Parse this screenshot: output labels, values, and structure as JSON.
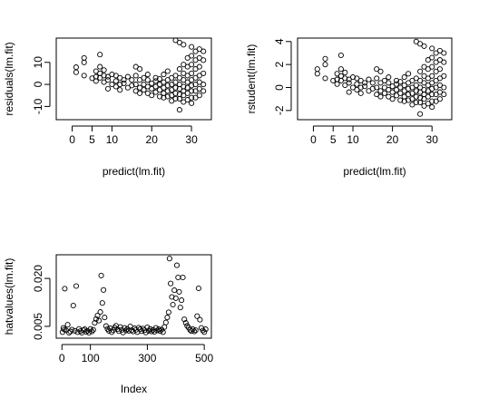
{
  "chart_data": [
    {
      "type": "scatter",
      "title": "",
      "xlabel": "predict(lm.fit)",
      "ylabel": "residuals(lm.fit)",
      "xlim": [
        -4,
        35
      ],
      "ylim": [
        -16,
        21
      ],
      "xticks": [
        0,
        5,
        10,
        20,
        30
      ],
      "yticks": [
        -10,
        0,
        10
      ],
      "grid": false,
      "legend": "none",
      "marker": "open-circle",
      "points": [
        [
          1,
          7.8
        ],
        [
          1,
          5.5
        ],
        [
          3,
          12
        ],
        [
          3,
          10
        ],
        [
          3,
          4
        ],
        [
          5,
          2.8
        ],
        [
          6,
          3.5
        ],
        [
          6,
          6
        ],
        [
          6,
          1.5
        ],
        [
          7,
          3
        ],
        [
          7,
          8
        ],
        [
          7,
          5
        ],
        [
          7,
          13.5
        ],
        [
          8,
          4
        ],
        [
          8,
          6.5
        ],
        [
          8,
          1
        ],
        [
          9,
          2
        ],
        [
          9,
          3.5
        ],
        [
          9,
          -2
        ],
        [
          10,
          4.5
        ],
        [
          10,
          0
        ],
        [
          11,
          1.5
        ],
        [
          11,
          -1
        ],
        [
          11,
          4
        ],
        [
          12,
          0
        ],
        [
          12,
          3
        ],
        [
          12,
          -2.5
        ],
        [
          13,
          2
        ],
        [
          13,
          0.5
        ],
        [
          14,
          -1.5
        ],
        [
          14,
          3.5
        ],
        [
          15,
          2
        ],
        [
          15,
          -0.5
        ],
        [
          16,
          8
        ],
        [
          16,
          4
        ],
        [
          16,
          0
        ],
        [
          16,
          -3
        ],
        [
          17,
          7
        ],
        [
          17,
          2
        ],
        [
          17,
          -1.5
        ],
        [
          17,
          -4
        ],
        [
          18,
          3
        ],
        [
          18,
          0
        ],
        [
          18,
          -2.5
        ],
        [
          19,
          2
        ],
        [
          19,
          -1
        ],
        [
          19,
          -4
        ],
        [
          19,
          4.5
        ],
        [
          20,
          0.5
        ],
        [
          20,
          -2
        ],
        [
          20,
          -5
        ],
        [
          21,
          3
        ],
        [
          21,
          -1
        ],
        [
          21,
          -3.5
        ],
        [
          21,
          1.5
        ],
        [
          22,
          0
        ],
        [
          22,
          -2.5
        ],
        [
          22,
          -5.5
        ],
        [
          22,
          2.5
        ],
        [
          23,
          4.5
        ],
        [
          23,
          1
        ],
        [
          23,
          -1.5
        ],
        [
          23,
          -4
        ],
        [
          23,
          -6
        ],
        [
          24,
          6
        ],
        [
          24,
          2
        ],
        [
          24,
          -0.5
        ],
        [
          24,
          -3
        ],
        [
          24,
          -5.5
        ],
        [
          25,
          3
        ],
        [
          25,
          0
        ],
        [
          25,
          -2.5
        ],
        [
          25,
          -5
        ],
        [
          25,
          -7.5
        ],
        [
          26,
          4
        ],
        [
          26,
          1
        ],
        [
          26,
          -1.5
        ],
        [
          26,
          -4
        ],
        [
          26,
          -6.5
        ],
        [
          26,
          20
        ],
        [
          27,
          7
        ],
        [
          27,
          3
        ],
        [
          27,
          0
        ],
        [
          27,
          -2
        ],
        [
          27,
          -4.5
        ],
        [
          27,
          -6.5
        ],
        [
          27,
          19
        ],
        [
          27,
          -11.5
        ],
        [
          28,
          9
        ],
        [
          28,
          5
        ],
        [
          28,
          2
        ],
        [
          28,
          -1
        ],
        [
          28,
          -3
        ],
        [
          28,
          -5
        ],
        [
          28,
          -8
        ],
        [
          28,
          18
        ],
        [
          29,
          12
        ],
        [
          29,
          8
        ],
        [
          29,
          4
        ],
        [
          29,
          1
        ],
        [
          29,
          -1.5
        ],
        [
          29,
          -4
        ],
        [
          29,
          -7
        ],
        [
          30,
          13
        ],
        [
          30,
          9
        ],
        [
          30,
          5
        ],
        [
          30,
          2
        ],
        [
          30,
          -0.5
        ],
        [
          30,
          -3
        ],
        [
          30,
          -6
        ],
        [
          30,
          -8.5
        ],
        [
          30,
          17
        ],
        [
          31,
          15
        ],
        [
          31,
          11
        ],
        [
          31,
          7
        ],
        [
          31,
          3
        ],
        [
          31,
          0
        ],
        [
          31,
          -3
        ],
        [
          31,
          -6
        ],
        [
          32,
          16
        ],
        [
          32,
          12
        ],
        [
          32,
          8
        ],
        [
          32,
          4
        ],
        [
          32,
          1
        ],
        [
          32,
          -2
        ],
        [
          32,
          -5
        ],
        [
          33,
          15
        ],
        [
          33,
          11
        ],
        [
          33,
          5
        ],
        [
          33,
          0
        ],
        [
          33,
          -3
        ]
      ]
    },
    {
      "type": "scatter",
      "title": "",
      "xlabel": "predict(lm.fit)",
      "ylabel": "rstudent(lm.fit)",
      "xlim": [
        -4,
        35
      ],
      "ylim": [
        -2.8,
        4.3
      ],
      "xticks": [
        0,
        5,
        10,
        20,
        30
      ],
      "yticks": [
        -2,
        0,
        2,
        4
      ],
      "grid": false,
      "legend": "none",
      "marker": "open-circle",
      "points": [
        [
          1,
          1.6
        ],
        [
          1,
          1.2
        ],
        [
          3,
          2.5
        ],
        [
          3,
          2.0
        ],
        [
          3,
          0.8
        ],
        [
          5,
          0.6
        ],
        [
          6,
          0.7
        ],
        [
          6,
          1.2
        ],
        [
          6,
          0.3
        ],
        [
          7,
          0.6
        ],
        [
          7,
          1.6
        ],
        [
          7,
          1.0
        ],
        [
          7,
          2.8
        ],
        [
          8,
          0.8
        ],
        [
          8,
          1.3
        ],
        [
          8,
          0.2
        ],
        [
          9,
          0.4
        ],
        [
          9,
          0.7
        ],
        [
          9,
          -0.4
        ],
        [
          10,
          0.9
        ],
        [
          10,
          0.0
        ],
        [
          11,
          0.3
        ],
        [
          11,
          -0.2
        ],
        [
          11,
          0.8
        ],
        [
          12,
          0.0
        ],
        [
          12,
          0.6
        ],
        [
          12,
          -0.5
        ],
        [
          13,
          0.4
        ],
        [
          13,
          0.1
        ],
        [
          14,
          -0.3
        ],
        [
          14,
          0.7
        ],
        [
          15,
          0.4
        ],
        [
          15,
          -0.1
        ],
        [
          16,
          1.6
        ],
        [
          16,
          0.8
        ],
        [
          16,
          0.0
        ],
        [
          16,
          -0.6
        ],
        [
          17,
          1.4
        ],
        [
          17,
          0.4
        ],
        [
          17,
          -0.3
        ],
        [
          17,
          -0.8
        ],
        [
          18,
          0.6
        ],
        [
          18,
          0.0
        ],
        [
          18,
          -0.5
        ],
        [
          19,
          0.4
        ],
        [
          19,
          -0.2
        ],
        [
          19,
          -0.8
        ],
        [
          19,
          0.9
        ],
        [
          20,
          0.1
        ],
        [
          20,
          -0.4
        ],
        [
          20,
          -1.0
        ],
        [
          21,
          0.6
        ],
        [
          21,
          -0.2
        ],
        [
          21,
          -0.7
        ],
        [
          21,
          0.3
        ],
        [
          22,
          0.0
        ],
        [
          22,
          -0.5
        ],
        [
          22,
          -1.1
        ],
        [
          22,
          0.5
        ],
        [
          23,
          0.9
        ],
        [
          23,
          0.2
        ],
        [
          23,
          -0.3
        ],
        [
          23,
          -0.8
        ],
        [
          23,
          -1.2
        ],
        [
          24,
          1.2
        ],
        [
          24,
          0.4
        ],
        [
          24,
          -0.1
        ],
        [
          24,
          -0.6
        ],
        [
          24,
          -1.1
        ],
        [
          25,
          0.6
        ],
        [
          25,
          0.0
        ],
        [
          25,
          -0.5
        ],
        [
          25,
          -1.0
        ],
        [
          25,
          -1.5
        ],
        [
          26,
          0.8
        ],
        [
          26,
          0.2
        ],
        [
          26,
          -0.3
        ],
        [
          26,
          -0.8
        ],
        [
          26,
          -1.3
        ],
        [
          26,
          4.0
        ],
        [
          27,
          1.4
        ],
        [
          27,
          0.6
        ],
        [
          27,
          0.0
        ],
        [
          27,
          -0.4
        ],
        [
          27,
          -0.9
        ],
        [
          27,
          -1.3
        ],
        [
          27,
          3.8
        ],
        [
          27,
          -2.3
        ],
        [
          28,
          1.8
        ],
        [
          28,
          1.0
        ],
        [
          28,
          0.4
        ],
        [
          28,
          -0.2
        ],
        [
          28,
          -0.6
        ],
        [
          28,
          -1.0
        ],
        [
          28,
          -1.6
        ],
        [
          28,
          3.6
        ],
        [
          29,
          2.4
        ],
        [
          29,
          1.6
        ],
        [
          29,
          0.8
        ],
        [
          29,
          0.2
        ],
        [
          29,
          -0.3
        ],
        [
          29,
          -0.8
        ],
        [
          29,
          -1.4
        ],
        [
          30,
          2.6
        ],
        [
          30,
          1.8
        ],
        [
          30,
          1.0
        ],
        [
          30,
          0.4
        ],
        [
          30,
          -0.1
        ],
        [
          30,
          -0.6
        ],
        [
          30,
          -1.2
        ],
        [
          30,
          -1.7
        ],
        [
          30,
          3.4
        ],
        [
          31,
          3.0
        ],
        [
          31,
          2.2
        ],
        [
          31,
          1.4
        ],
        [
          31,
          0.6
        ],
        [
          31,
          0.0
        ],
        [
          31,
          -0.6
        ],
        [
          31,
          -1.2
        ],
        [
          32,
          3.2
        ],
        [
          32,
          2.4
        ],
        [
          32,
          1.6
        ],
        [
          32,
          0.8
        ],
        [
          32,
          0.2
        ],
        [
          32,
          -0.4
        ],
        [
          32,
          -1.0
        ],
        [
          33,
          3.0
        ],
        [
          33,
          2.2
        ],
        [
          33,
          1.0
        ],
        [
          33,
          0.0
        ],
        [
          33,
          -0.6
        ]
      ]
    },
    {
      "type": "scatter",
      "title": "",
      "xlabel": "Index",
      "ylabel": "hatvalues(lm.fit)",
      "xlim": [
        -20,
        525
      ],
      "ylim": [
        0.0013,
        0.0274
      ],
      "xticks": [
        0,
        100,
        300,
        500
      ],
      "yticks": [
        0.005,
        0.02
      ],
      "yticklabels": [
        "0.005",
        "0.020"
      ],
      "grid": false,
      "legend": "none",
      "marker": "open-circle",
      "points": [
        [
          2,
          0.0032
        ],
        [
          5,
          0.0045
        ],
        [
          8,
          0.004
        ],
        [
          10,
          0.0168
        ],
        [
          14,
          0.0038
        ],
        [
          20,
          0.0055
        ],
        [
          25,
          0.003
        ],
        [
          30,
          0.0034
        ],
        [
          35,
          0.004
        ],
        [
          40,
          0.0115
        ],
        [
          45,
          0.0036
        ],
        [
          50,
          0.0176
        ],
        [
          55,
          0.0032
        ],
        [
          60,
          0.0042
        ],
        [
          65,
          0.0035
        ],
        [
          70,
          0.003
        ],
        [
          75,
          0.0038
        ],
        [
          80,
          0.0041
        ],
        [
          85,
          0.0033
        ],
        [
          90,
          0.0036
        ],
        [
          95,
          0.003
        ],
        [
          100,
          0.0042
        ],
        [
          105,
          0.0034
        ],
        [
          110,
          0.0039
        ],
        [
          115,
          0.0061
        ],
        [
          120,
          0.0073
        ],
        [
          125,
          0.0084
        ],
        [
          130,
          0.0068
        ],
        [
          135,
          0.0095
        ],
        [
          138,
          0.0209
        ],
        [
          142,
          0.0123
        ],
        [
          146,
          0.0164
        ],
        [
          150,
          0.0078
        ],
        [
          155,
          0.0051
        ],
        [
          160,
          0.0042
        ],
        [
          165,
          0.0036
        ],
        [
          170,
          0.0044
        ],
        [
          175,
          0.0032
        ],
        [
          180,
          0.0038
        ],
        [
          185,
          0.0046
        ],
        [
          190,
          0.0052
        ],
        [
          195,
          0.0041
        ],
        [
          200,
          0.0035
        ],
        [
          205,
          0.0048
        ],
        [
          210,
          0.0039
        ],
        [
          215,
          0.0031
        ],
        [
          220,
          0.0045
        ],
        [
          225,
          0.0037
        ],
        [
          230,
          0.0042
        ],
        [
          235,
          0.0036
        ],
        [
          240,
          0.005
        ],
        [
          245,
          0.0038
        ],
        [
          250,
          0.0034
        ],
        [
          255,
          0.0044
        ],
        [
          260,
          0.0039
        ],
        [
          265,
          0.0032
        ],
        [
          270,
          0.0046
        ],
        [
          275,
          0.0041
        ],
        [
          280,
          0.0035
        ],
        [
          285,
          0.0043
        ],
        [
          290,
          0.0038
        ],
        [
          295,
          0.0031
        ],
        [
          300,
          0.0047
        ],
        [
          305,
          0.0036
        ],
        [
          310,
          0.0042
        ],
        [
          315,
          0.0034
        ],
        [
          320,
          0.0039
        ],
        [
          325,
          0.0033
        ],
        [
          330,
          0.0045
        ],
        [
          335,
          0.0037
        ],
        [
          340,
          0.0041
        ],
        [
          345,
          0.0035
        ],
        [
          350,
          0.004
        ],
        [
          355,
          0.0032
        ],
        [
          360,
          0.0048
        ],
        [
          365,
          0.0062
        ],
        [
          370,
          0.0078
        ],
        [
          375,
          0.0094
        ],
        [
          378,
          0.0262
        ],
        [
          382,
          0.0184
        ],
        [
          386,
          0.0142
        ],
        [
          390,
          0.0118
        ],
        [
          395,
          0.0163
        ],
        [
          400,
          0.0138
        ],
        [
          404,
          0.0241
        ],
        [
          408,
          0.0203
        ],
        [
          412,
          0.0158
        ],
        [
          416,
          0.0109
        ],
        [
          420,
          0.0132
        ],
        [
          425,
          0.0203
        ],
        [
          430,
          0.0072
        ],
        [
          435,
          0.0061
        ],
        [
          440,
          0.0052
        ],
        [
          445,
          0.0046
        ],
        [
          450,
          0.0039
        ],
        [
          455,
          0.0035
        ],
        [
          460,
          0.0041
        ],
        [
          465,
          0.0034
        ],
        [
          470,
          0.0038
        ],
        [
          475,
          0.0082
        ],
        [
          480,
          0.0169
        ],
        [
          485,
          0.0071
        ],
        [
          490,
          0.0045
        ],
        [
          495,
          0.0037
        ],
        [
          500,
          0.0032
        ],
        [
          505,
          0.0041
        ]
      ]
    }
  ]
}
